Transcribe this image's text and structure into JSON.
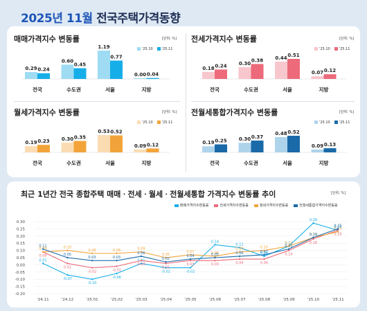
{
  "page": {
    "title_year": "2025년 11월",
    "title_rest": "전국주택가격동향",
    "unit": "[단위: %]"
  },
  "colors": {
    "sale_prev": "#9fdcf3",
    "sale_curr": "#16aee8",
    "jeonse_prev": "#f8c6cd",
    "jeonse_curr": "#ec6a7a",
    "wolse_prev": "#fbdcb2",
    "wolse_curr": "#f2a43a",
    "integrated_prev": "#aed4ec",
    "integrated_curr": "#1a6aa8"
  },
  "chart_data": [
    {
      "type": "bar",
      "title": "매매가격지수 변동률",
      "categories": [
        "전국",
        "수도권",
        "서울",
        "지방"
      ],
      "series": [
        {
          "name": "'25.10",
          "values": [
            0.29,
            0.6,
            1.19,
            0.0
          ]
        },
        {
          "name": "'25.11",
          "values": [
            0.24,
            0.45,
            0.77,
            0.04
          ]
        }
      ]
    },
    {
      "type": "bar",
      "title": "전세가격지수 변동률",
      "categories": [
        "전국",
        "수도권",
        "서울",
        "지방"
      ],
      "series": [
        {
          "name": "'25.10",
          "values": [
            0.18,
            0.3,
            0.44,
            0.07
          ]
        },
        {
          "name": "'25.11",
          "values": [
            0.24,
            0.38,
            0.51,
            0.12
          ]
        }
      ]
    },
    {
      "type": "bar",
      "title": "월세가격지수 변동률",
      "categories": [
        "전국",
        "수도권",
        "서울",
        "지방"
      ],
      "series": [
        {
          "name": "'25.10",
          "values": [
            0.19,
            0.3,
            0.53,
            0.09
          ]
        },
        {
          "name": "'25.11",
          "values": [
            0.23,
            0.35,
            0.52,
            0.12
          ]
        }
      ]
    },
    {
      "type": "bar",
      "title": "전월세통합가격지수 변동률",
      "categories": [
        "전국",
        "수도권",
        "서울",
        "지방"
      ],
      "series": [
        {
          "name": "'25.10",
          "values": [
            0.19,
            0.3,
            0.48,
            0.09
          ]
        },
        {
          "name": "'25.11",
          "values": [
            0.25,
            0.37,
            0.52,
            0.13
          ]
        }
      ]
    },
    {
      "type": "line",
      "title": "최근 1년간 전국 종합주택 매매ㆍ전세ㆍ월세ㆍ전월세통합 가격지수 변동률 추이",
      "x": [
        "'24.11",
        "'24.12",
        "'25.01",
        "'25.02",
        "'25.03",
        "'25.04",
        "'25.05",
        "'25.06",
        "'25.07",
        "'25.08",
        "'25.09",
        "'25.10",
        "'25.11"
      ],
      "ylim": [
        -0.2,
        0.3
      ],
      "yticks": [
        "-0.20",
        "-0.15",
        "-0.10",
        "-0.05",
        "0.00",
        "0.05",
        "0.10",
        "0.15",
        "0.20",
        "0.25",
        "0.30"
      ],
      "series": [
        {
          "name": "매매가격지수변동률",
          "values": [
            0.01,
            -0.07,
            -0.1,
            -0.06,
            0.01,
            -0.02,
            -0.02,
            0.14,
            0.12,
            0.06,
            0.13,
            0.29,
            0.24
          ]
        },
        {
          "name": "전세가격지수변동률",
          "values": [
            0.09,
            0.01,
            -0.02,
            -0.01,
            0.03,
            0.01,
            0.03,
            0.03,
            0.04,
            0.04,
            0.1,
            0.18,
            0.24
          ]
        },
        {
          "name": "월세가격지수변동률",
          "values": [
            0.09,
            0.1,
            0.08,
            0.08,
            0.09,
            0.05,
            0.07,
            0.06,
            0.09,
            0.1,
            0.13,
            0.19,
            0.23
          ]
        },
        {
          "name": "전월세통합가격지수변동률",
          "values": [
            0.11,
            0.05,
            0.03,
            0.03,
            0.06,
            0.02,
            0.04,
            0.05,
            0.06,
            0.07,
            0.11,
            0.19,
            0.25
          ]
        }
      ]
    }
  ]
}
